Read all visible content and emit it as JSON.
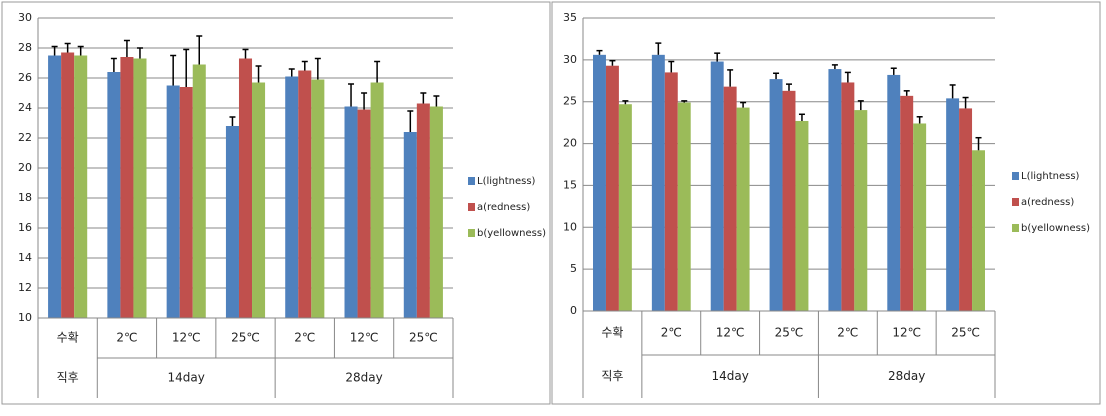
{
  "chart_data": [
    {
      "type": "bar",
      "categories": [
        "수확",
        "2℃",
        "12℃",
        "25℃",
        "2℃",
        "12℃",
        "25℃"
      ],
      "groups": [
        {
          "label": "직후",
          "span": 1
        },
        {
          "label": "14day",
          "span": 3
        },
        {
          "label": "28day",
          "span": 3
        }
      ],
      "series": [
        {
          "name": "L(lightness)",
          "color": "#4f81bd",
          "values": [
            27.5,
            26.4,
            25.5,
            22.8,
            26.1,
            24.1,
            22.4
          ],
          "errors": [
            0.6,
            0.9,
            2.0,
            0.6,
            0.5,
            1.5,
            1.4
          ]
        },
        {
          "name": "a(redness)",
          "color": "#c0504d",
          "values": [
            27.7,
            27.4,
            25.4,
            27.3,
            26.5,
            23.9,
            24.3
          ],
          "errors": [
            0.6,
            1.1,
            2.5,
            0.6,
            0.6,
            1.1,
            0.7
          ]
        },
        {
          "name": "b(yellowness)",
          "color": "#9bbb59",
          "values": [
            27.5,
            27.3,
            26.9,
            25.7,
            25.9,
            25.7,
            24.1
          ],
          "errors": [
            0.6,
            0.7,
            1.9,
            1.1,
            1.4,
            1.4,
            0.7
          ]
        }
      ],
      "ylim": [
        10,
        30
      ],
      "yticks": [
        10,
        12,
        14,
        16,
        18,
        20,
        22,
        24,
        26,
        28,
        30
      ],
      "grid": true,
      "legend": "right"
    },
    {
      "type": "bar",
      "categories": [
        "수확",
        "2℃",
        "12℃",
        "25℃",
        "2℃",
        "12℃",
        "25℃"
      ],
      "groups": [
        {
          "label": "직후",
          "span": 1
        },
        {
          "label": "14day",
          "span": 3
        },
        {
          "label": "28day",
          "span": 3
        }
      ],
      "series": [
        {
          "name": "L(lightness)",
          "color": "#4f81bd",
          "values": [
            30.6,
            30.6,
            29.8,
            27.7,
            28.9,
            28.2,
            25.4
          ],
          "errors": [
            0.5,
            1.4,
            1.0,
            0.7,
            0.5,
            0.8,
            1.6
          ]
        },
        {
          "name": "a(redness)",
          "color": "#c0504d",
          "values": [
            29.3,
            28.5,
            26.8,
            26.3,
            27.3,
            25.7,
            24.2
          ],
          "errors": [
            0.6,
            1.3,
            2.0,
            0.8,
            1.2,
            0.6,
            1.3
          ]
        },
        {
          "name": "b(yellowness)",
          "color": "#9bbb59",
          "values": [
            24.7,
            24.9,
            24.3,
            22.7,
            24.0,
            22.4,
            19.2
          ],
          "errors": [
            0.4,
            0.2,
            0.6,
            0.8,
            1.1,
            0.8,
            1.5
          ]
        }
      ],
      "ylim": [
        0,
        35
      ],
      "yticks": [
        0,
        5,
        10,
        15,
        20,
        25,
        30,
        35
      ],
      "grid": true,
      "legend": "right"
    }
  ]
}
